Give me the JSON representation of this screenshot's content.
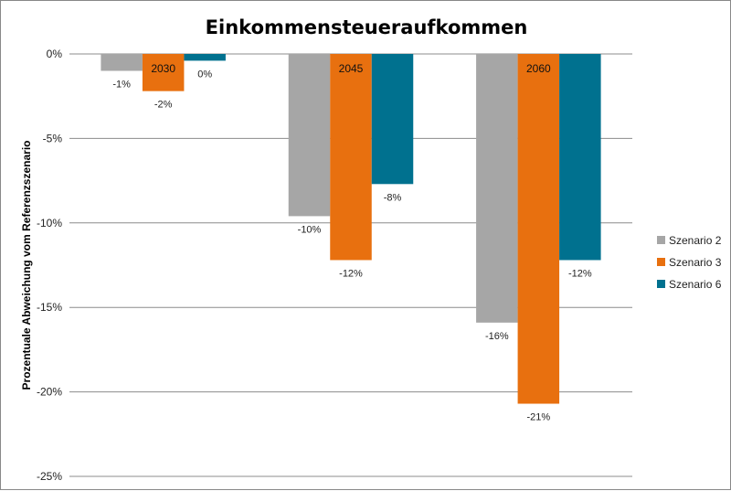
{
  "chart_data": {
    "type": "bar",
    "title": "Einkommensteueraufkommen",
    "ylabel": "Prozentuale Abweichung vom Referenzszenario",
    "xlabel": "",
    "ylim": [
      -25,
      0
    ],
    "yticks": [
      0,
      -5,
      -10,
      -15,
      -20,
      -25
    ],
    "ytick_labels": [
      "0%",
      "-5%",
      "-10%",
      "-15%",
      "-20%",
      "-25%"
    ],
    "grid": true,
    "legend_position": "right",
    "categories": [
      "2030",
      "2045",
      "2060"
    ],
    "series": [
      {
        "name": "Szenario 2",
        "color": "#a6a6a6",
        "values": [
          -1.0,
          -9.6,
          -15.9
        ],
        "labels": [
          "-1%",
          "-10%",
          "-16%"
        ]
      },
      {
        "name": "Szenario 3",
        "color": "#e8700f",
        "values": [
          -2.2,
          -12.2,
          -20.7
        ],
        "labels": [
          "-2%",
          "-12%",
          "-21%"
        ]
      },
      {
        "name": "Szenario 6",
        "color": "#00718f",
        "values": [
          -0.4,
          -7.7,
          -12.2
        ],
        "labels": [
          "0%",
          "-8%",
          "-12%"
        ]
      }
    ]
  }
}
